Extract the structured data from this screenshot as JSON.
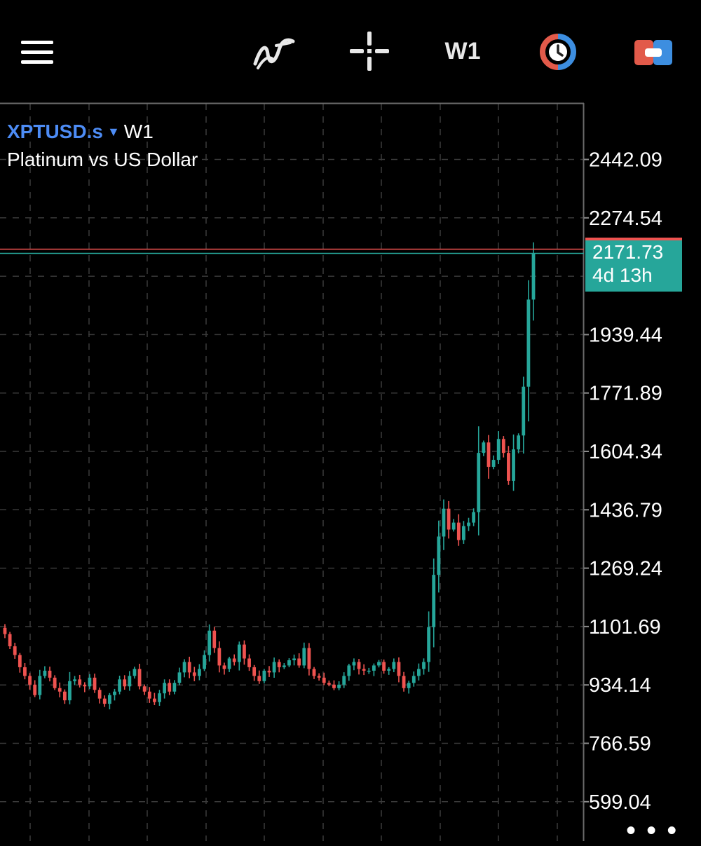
{
  "toolbar": {
    "menu_icon": "hamburger-menu-icon",
    "indicators_icon": "indicators-wave-icon",
    "crosshair_icon": "crosshair-icon",
    "timeframe_label": "W1",
    "clock_icon": "one-click-trading-clock-icon",
    "trade_icon": "trade-toggle-icon"
  },
  "chart_header": {
    "symbol": "XPTUSD.s",
    "dropdown_glyph": "▼",
    "timeframe": "W1",
    "description": "Platinum vs US Dollar"
  },
  "current_price": {
    "value": "2171.73",
    "bar_timer": "4d 13h"
  },
  "price_axis": {
    "labels": [
      "2442.09",
      "2274.54",
      "1939.44",
      "1771.89",
      "1604.34",
      "1436.79",
      "1269.24",
      "1101.69",
      "934.14",
      "766.59",
      "599.04"
    ]
  },
  "more_menu_glyph": "• • •",
  "colors": {
    "background": "#000000",
    "grid": "#3a3a3a",
    "bull": "#26a69a",
    "bear": "#ef5350",
    "symbol": "#4d8cf5",
    "bid_line": "#ef5350",
    "ask_line": "#26a69a"
  },
  "chart_data": {
    "type": "candlestick",
    "title": "XPTUSD.s W1 — Platinum vs US Dollar",
    "ylim": [
      533,
      2520
    ],
    "y_ticks": [
      2442.09,
      2274.54,
      1939.44,
      1771.89,
      1604.34,
      1436.79,
      1269.24,
      1101.69,
      934.14,
      766.59,
      599.04
    ],
    "bid": 2171.73,
    "ask": 2183,
    "grid": true,
    "closes": [
      1080,
      1045,
      1020,
      985,
      960,
      935,
      905,
      960,
      975,
      955,
      925,
      915,
      890,
      945,
      950,
      935,
      930,
      955,
      920,
      895,
      880,
      905,
      915,
      950,
      930,
      960,
      980,
      930,
      915,
      895,
      885,
      910,
      940,
      915,
      940,
      970,
      1000,
      970,
      960,
      980,
      1020,
      1090,
      1040,
      990,
      980,
      1010,
      1000,
      1050,
      1010,
      985,
      960,
      945,
      975,
      970,
      1000,
      985,
      990,
      1005,
      1010,
      990,
      1040,
      980,
      960,
      955,
      940,
      935,
      925,
      935,
      960,
      990,
      1000,
      980,
      975,
      975,
      990,
      1000,
      975,
      980,
      1000,
      960,
      925,
      940,
      960,
      980,
      1000,
      1100,
      1250,
      1360,
      1440,
      1380,
      1400,
      1350,
      1390,
      1400,
      1430,
      1600,
      1630,
      1560,
      1580,
      1640,
      1600,
      1520,
      1610,
      1650,
      1790,
      2040,
      2171.73
    ],
    "x_label": "",
    "y_label": ""
  }
}
